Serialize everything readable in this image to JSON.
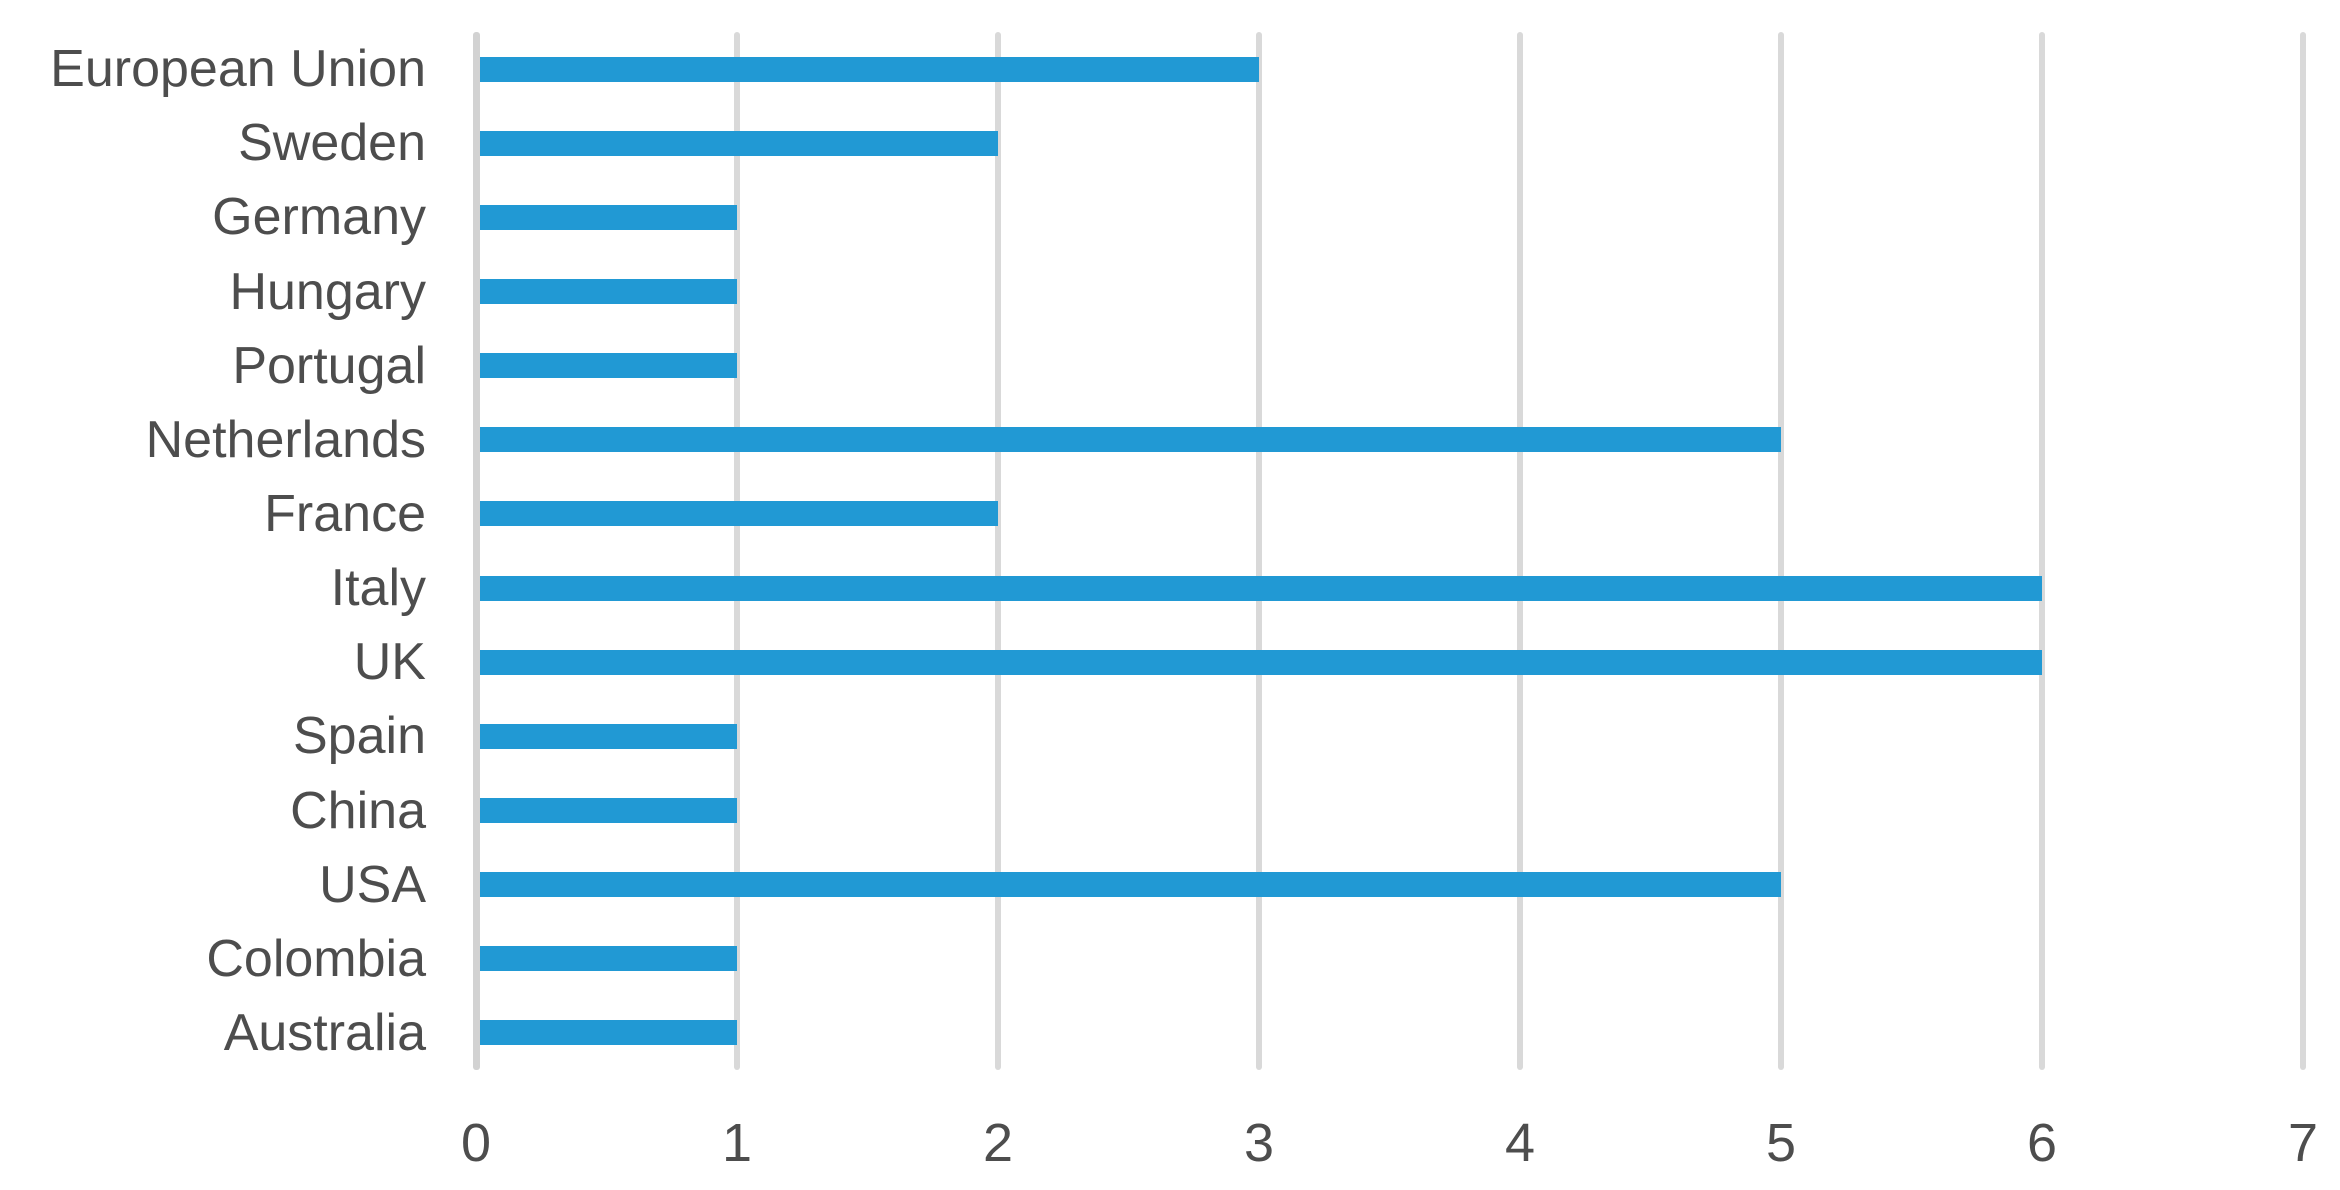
{
  "chart_data": {
    "type": "bar",
    "orientation": "horizontal",
    "title": "",
    "xlabel": "",
    "ylabel": "",
    "categories": [
      "European Union",
      "Sweden",
      "Germany",
      "Hungary",
      "Portugal",
      "Netherlands",
      "France",
      "Italy",
      "UK",
      "Spain",
      "China",
      "USA",
      "Colombia",
      "Australia"
    ],
    "values": [
      3,
      2,
      1,
      1,
      1,
      5,
      2,
      6,
      6,
      1,
      1,
      5,
      1,
      1
    ],
    "xlim": [
      0,
      7
    ],
    "xticks": [
      "0",
      "1",
      "2",
      "3",
      "4",
      "5",
      "6",
      "7"
    ],
    "grid": true,
    "legend": false,
    "colors": {
      "bar": "#2199D4",
      "gridline": "#D9D9D9",
      "axis_line": "#D2D2D2",
      "label_text": "#4D4D4D"
    }
  }
}
